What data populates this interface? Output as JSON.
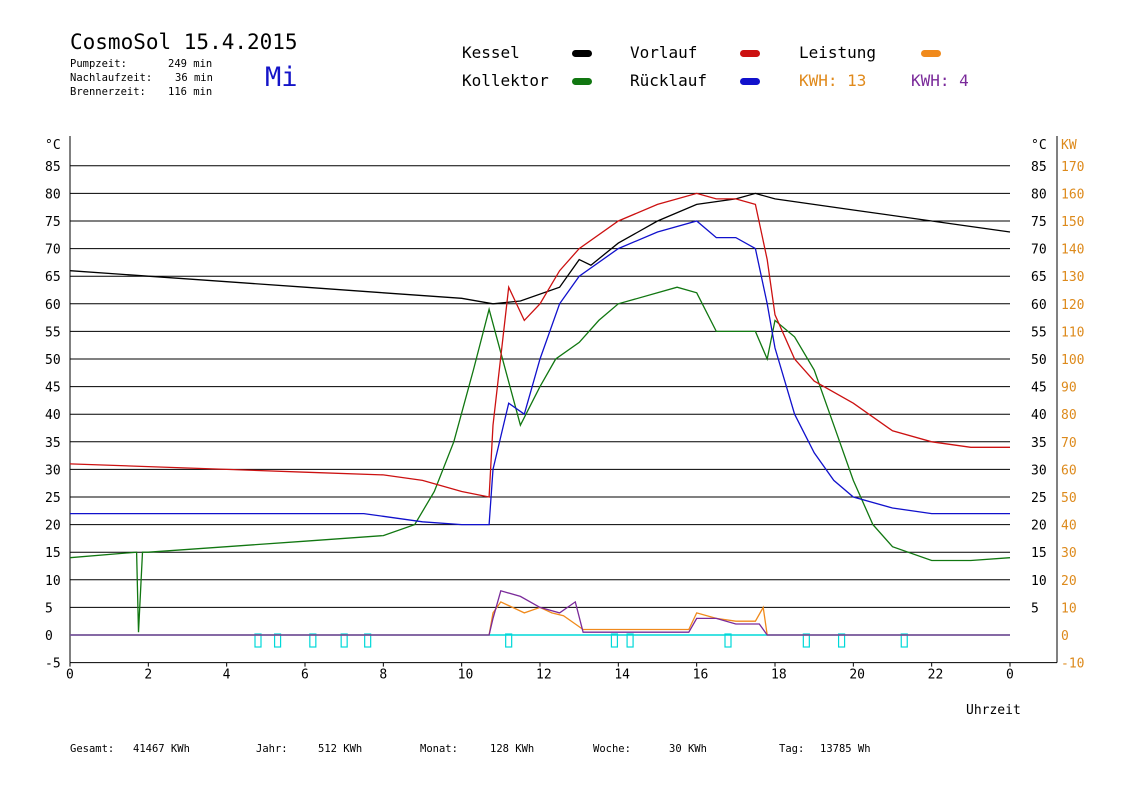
{
  "header": {
    "title": "CosmoSol 15.4.2015",
    "day": "Mi",
    "stats": [
      {
        "label": "Pumpzeit:",
        "value": "249 min"
      },
      {
        "label": "Nachlaufzeit:",
        "value": "36 min"
      },
      {
        "label": "Brennerzeit:",
        "value": "116 min"
      }
    ]
  },
  "legend": {
    "kessel": "Kessel",
    "kollektor": "Kollektor",
    "vorlauf": "Vorlauf",
    "ruecklauf": "Rücklauf",
    "leistung": "Leistung",
    "kwh1": "KWH: 13",
    "kwh2": "KWH: 4"
  },
  "colors": {
    "kessel": "#000000",
    "kollektor": "#117711",
    "vorlauf": "#cc1111",
    "ruecklauf": "#1111cc",
    "leistung": "#f08a1c",
    "kwh2": "#7a2a9a",
    "pump": "#00d8d8",
    "axis_right": "#dd8a1c"
  },
  "footer": [
    {
      "label": "Gesamt:",
      "value": "41467 KWh"
    },
    {
      "label": "Jahr:",
      "value": "512 KWh"
    },
    {
      "label": "Monat:",
      "value": "128 KWh"
    },
    {
      "label": "Woche:",
      "value": "30 KWh"
    },
    {
      "label": "Tag:",
      "value": "13785 Wh"
    }
  ],
  "chart_data": {
    "type": "line",
    "xlabel": "Uhrzeit",
    "ylabel_left": "°C",
    "ylabel_right_1": "°C",
    "ylabel_right_2": "KW",
    "xlim": [
      0,
      24
    ],
    "ylim": [
      -5,
      85
    ],
    "x_ticks": [
      "0",
      "2",
      "4",
      "6",
      "8",
      "10",
      "12",
      "14",
      "16",
      "18",
      "20",
      "22",
      "0"
    ],
    "y_ticks": [
      "-5",
      "0",
      "5",
      "10",
      "15",
      "20",
      "25",
      "30",
      "35",
      "40",
      "45",
      "50",
      "55",
      "60",
      "65",
      "70",
      "75",
      "80",
      "85"
    ],
    "y_ticks_right": [
      "5",
      "10",
      "15",
      "20",
      "25",
      "30",
      "35",
      "40",
      "45",
      "50",
      "55",
      "60",
      "65",
      "70",
      "75",
      "80",
      "85"
    ],
    "y2_ticks_right": [
      "-10",
      "0",
      "10",
      "20",
      "30",
      "40",
      "50",
      "60",
      "70",
      "80",
      "90",
      "100",
      "110",
      "120",
      "130",
      "140",
      "150",
      "160",
      "170"
    ],
    "grid": "horizontal",
    "series": [
      {
        "name": "Kessel",
        "color": "#000000",
        "x": [
          0,
          2,
          4,
          6,
          8,
          10,
          10.8,
          11.5,
          12.5,
          13,
          13.3,
          14,
          15,
          16,
          17,
          17.5,
          18,
          20,
          22,
          24
        ],
        "y": [
          66,
          65,
          64,
          63,
          62,
          61,
          60,
          60.5,
          63,
          68,
          67,
          71,
          75,
          78,
          79,
          80,
          79,
          77,
          75,
          73
        ]
      },
      {
        "name": "Kollektor",
        "color": "#117711",
        "x": [
          0,
          1.7,
          1.75,
          1.85,
          2,
          4,
          6,
          8,
          8.8,
          9.3,
          9.8,
          10.3,
          10.7,
          11.5,
          12,
          12.4,
          13,
          13.5,
          14,
          15,
          15.5,
          16,
          16.5,
          17,
          17.5,
          17.8,
          18,
          18.5,
          19,
          19.5,
          20,
          20.5,
          21,
          22,
          23,
          24
        ],
        "y": [
          14,
          15,
          0.5,
          15,
          15,
          16,
          17,
          18,
          20,
          26,
          35,
          48,
          59,
          38,
          45,
          50,
          53,
          57,
          60,
          62,
          63,
          62,
          55,
          55,
          55,
          50,
          57,
          54,
          48,
          38,
          28,
          20,
          16,
          13.5,
          13.5,
          14
        ]
      },
      {
        "name": "Vorlauf",
        "color": "#cc1111",
        "x": [
          0,
          2,
          4,
          6,
          8,
          9,
          10,
          10.7,
          10.8,
          11.2,
          11.6,
          12,
          12.5,
          13,
          14,
          15,
          16,
          16.5,
          17,
          17.5,
          17.8,
          18,
          18.5,
          19,
          20,
          21,
          22,
          23,
          24
        ],
        "y": [
          31,
          30.5,
          30,
          29.5,
          29,
          28,
          26,
          25,
          38,
          63,
          57,
          60,
          66,
          70,
          75,
          78,
          80,
          79,
          79,
          78,
          68,
          58,
          50,
          46,
          42,
          37,
          35,
          34,
          34
        ]
      },
      {
        "name": "Rücklauf",
        "color": "#1111cc",
        "x": [
          0,
          2,
          4,
          6,
          7.5,
          8,
          9,
          10,
          10.7,
          10.8,
          11.2,
          11.6,
          12,
          12.5,
          13,
          14,
          15,
          16,
          16.5,
          17,
          17.5,
          17.8,
          18,
          18.5,
          19,
          19.5,
          20,
          21,
          22,
          23,
          24
        ],
        "y": [
          22,
          22,
          22,
          22,
          22,
          21.5,
          20.5,
          20,
          20,
          30,
          42,
          40,
          50,
          60,
          65,
          70,
          73,
          75,
          72,
          72,
          70,
          60,
          52,
          40,
          33,
          28,
          25,
          23,
          22,
          22,
          22
        ]
      },
      {
        "name": "Leistung",
        "color": "#f08a1c",
        "x": [
          0,
          10.7,
          10.8,
          11,
          11.3,
          11.6,
          12,
          12.3,
          12.6,
          12.9,
          13.1,
          14,
          15,
          15.8,
          16,
          16.5,
          17,
          17.5,
          17.7,
          17.8,
          24
        ],
        "y": [
          0,
          0,
          4,
          6,
          5,
          4,
          5,
          4,
          3.5,
          2,
          1,
          1,
          1,
          1,
          4,
          3,
          2.5,
          2.5,
          5,
          0,
          0
        ]
      },
      {
        "name": "KWH 4",
        "color": "#7a2a9a",
        "x": [
          0,
          10.7,
          10.8,
          11,
          11.5,
          12,
          12.5,
          12.9,
          13.1,
          14,
          15,
          15.8,
          16,
          16.5,
          17,
          17.6,
          17.8,
          24
        ],
        "y": [
          0,
          0,
          3,
          8,
          7,
          5,
          4,
          6,
          0.5,
          0.5,
          0.5,
          0.5,
          3,
          3,
          2,
          2,
          0,
          0
        ]
      }
    ],
    "pump_markers": [
      4.8,
      5.3,
      6.2,
      7,
      7.6,
      11.2,
      13.9,
      14.3,
      16.8,
      18.8,
      19.7,
      21.3
    ]
  }
}
